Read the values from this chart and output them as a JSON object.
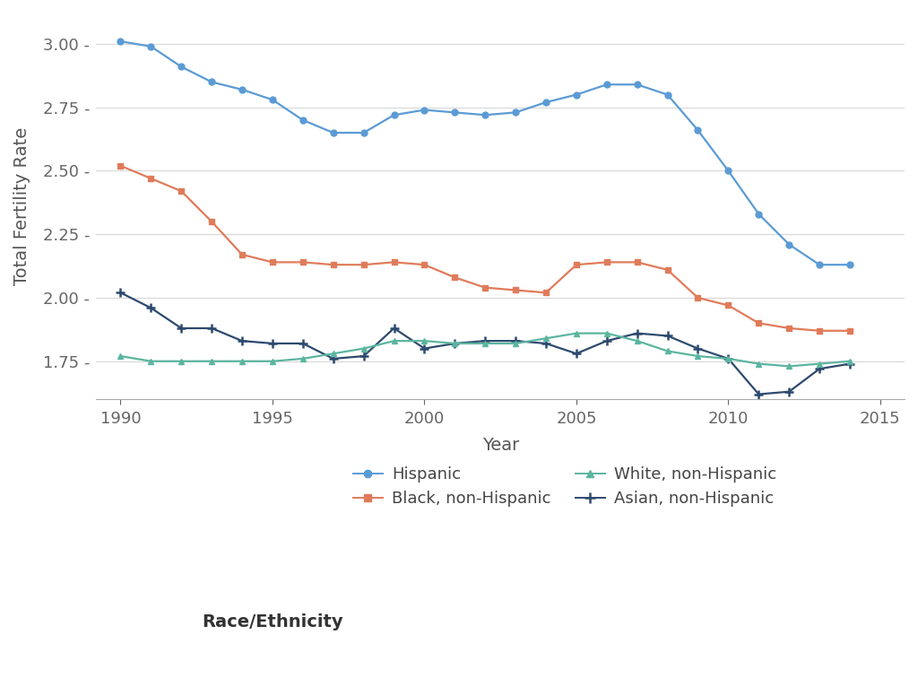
{
  "years": [
    1990,
    1991,
    1992,
    1993,
    1994,
    1995,
    1996,
    1997,
    1998,
    1999,
    2000,
    2001,
    2002,
    2003,
    2004,
    2005,
    2006,
    2007,
    2008,
    2009,
    2010,
    2011,
    2012,
    2013,
    2014
  ],
  "hispanic": [
    3.01,
    2.99,
    2.91,
    2.85,
    2.82,
    2.78,
    2.7,
    2.65,
    2.65,
    2.72,
    2.74,
    2.73,
    2.72,
    2.73,
    2.77,
    2.8,
    2.84,
    2.84,
    2.8,
    2.66,
    2.5,
    2.33,
    2.21,
    2.13,
    2.13
  ],
  "black": [
    2.52,
    2.47,
    2.42,
    2.3,
    2.17,
    2.14,
    2.14,
    2.13,
    2.13,
    2.14,
    2.13,
    2.08,
    2.04,
    2.03,
    2.02,
    2.13,
    2.14,
    2.14,
    2.11,
    2.0,
    1.97,
    1.9,
    1.88,
    1.87,
    1.87
  ],
  "white": [
    1.77,
    1.75,
    1.75,
    1.75,
    1.75,
    1.75,
    1.76,
    1.78,
    1.8,
    1.83,
    1.83,
    1.82,
    1.82,
    1.82,
    1.84,
    1.86,
    1.86,
    1.83,
    1.79,
    1.77,
    1.76,
    1.74,
    1.73,
    1.74,
    1.75
  ],
  "asian": [
    2.02,
    1.96,
    1.88,
    1.88,
    1.83,
    1.82,
    1.82,
    1.76,
    1.77,
    1.88,
    1.8,
    1.82,
    1.83,
    1.83,
    1.82,
    1.78,
    1.83,
    1.86,
    1.85,
    1.8,
    1.76,
    1.62,
    1.63,
    1.72,
    1.74
  ],
  "hispanic_color": "#5b9bd5",
  "black_color": "#e07b5a",
  "white_color": "#5bb5a0",
  "asian_color": "#2d4a6e",
  "xlabel": "Year",
  "ylabel": "Total Fertility Rate",
  "legend_title": "Race/Ethnicity",
  "ylim": [
    1.6,
    3.12
  ],
  "yticks": [
    1.75,
    2.0,
    2.25,
    2.5,
    2.75,
    3.0
  ],
  "xticks": [
    1990,
    1995,
    2000,
    2005,
    2010,
    2015
  ],
  "background_color": "#ffffff",
  "grid_color": "#d8d8d8",
  "label_fontsize": 14,
  "tick_fontsize": 13,
  "legend_fontsize": 13
}
